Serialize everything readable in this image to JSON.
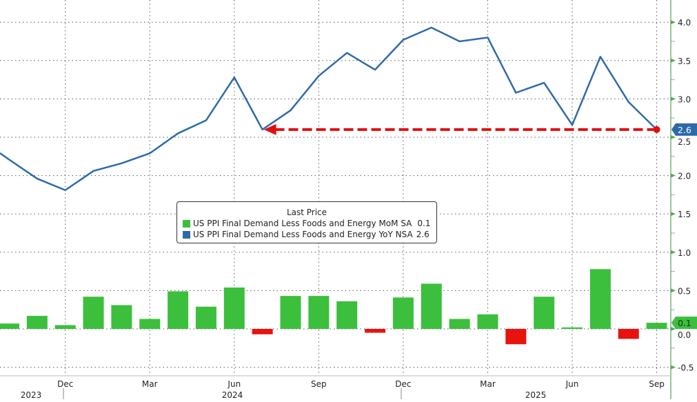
{
  "chart_data": {
    "type": "bar+line",
    "legend": {
      "title": "Last Price",
      "placement": "center",
      "entries": [
        {
          "label": "US PPI Final Demand Less Foods and Energy MoM SA",
          "last": "0.1",
          "color": "#3cbf3c"
        },
        {
          "label": "US PPI Final Demand Less Foods and Energy YoY NSA",
          "last": "2.6",
          "color": "#2d6aa8"
        }
      ]
    },
    "x": [
      "2023-10",
      "2023-11",
      "2023-12",
      "2024-01",
      "2024-02",
      "2024-03",
      "2024-04",
      "2024-05",
      "2024-06",
      "2024-07",
      "2024-08",
      "2024-09",
      "2024-10",
      "2024-11",
      "2024-12",
      "2025-01",
      "2025-02",
      "2025-03",
      "2025-04",
      "2025-05",
      "2025-06",
      "2025-07",
      "2025-08",
      "2025-09"
    ],
    "series": [
      {
        "name": "US PPI Final Demand Less Foods and Energy MoM SA",
        "type": "bar",
        "values": [
          0.07,
          0.17,
          0.05,
          0.42,
          0.31,
          0.13,
          0.49,
          0.29,
          0.54,
          -0.07,
          0.43,
          0.43,
          0.36,
          -0.05,
          0.41,
          0.59,
          0.13,
          0.19,
          -0.2,
          0.42,
          0.02,
          0.78,
          -0.13,
          0.08
        ]
      },
      {
        "name": "US PPI Final Demand Less Foods and Energy YoY NSA",
        "type": "line",
        "values": [
          2.21,
          1.96,
          1.81,
          2.06,
          2.16,
          2.29,
          2.55,
          2.72,
          3.28,
          2.6,
          2.85,
          3.3,
          3.6,
          3.38,
          3.77,
          3.93,
          3.75,
          3.8,
          3.08,
          3.21,
          2.66,
          3.55,
          2.96,
          2.6
        ]
      }
    ],
    "positive_color": "#3cbf3c",
    "negative_color": "#e8120f",
    "line_color": "#2d6aa8",
    "annotation": {
      "type": "dashed-arrow",
      "color": "#e01010",
      "from": "2025-09",
      "to": "2024-07",
      "value": 2.6
    },
    "ylim": [
      -0.6,
      4.2
    ],
    "yticks": [
      "-0.5",
      "0.0",
      "0.5",
      "1.0",
      "1.5",
      "2.0",
      "2.5",
      "3.0",
      "3.5",
      "4.0"
    ],
    "x_month_labels": [
      {
        "at": "2023-12",
        "label": "Dec"
      },
      {
        "at": "2024-03",
        "label": "Mar"
      },
      {
        "at": "2024-06",
        "label": "Jun"
      },
      {
        "at": "2024-09",
        "label": "Sep"
      },
      {
        "at": "2024-12",
        "label": "Dec"
      },
      {
        "at": "2025-03",
        "label": "Mar"
      },
      {
        "at": "2025-06",
        "label": "Jun"
      },
      {
        "at": "2025-09",
        "label": "Sep"
      }
    ],
    "x_year_labels": [
      "2023",
      "2024",
      "2025"
    ],
    "last_value_labels": {
      "bar": "0.1",
      "line": "2.6"
    },
    "grid": true,
    "yaxis_side": "right"
  }
}
